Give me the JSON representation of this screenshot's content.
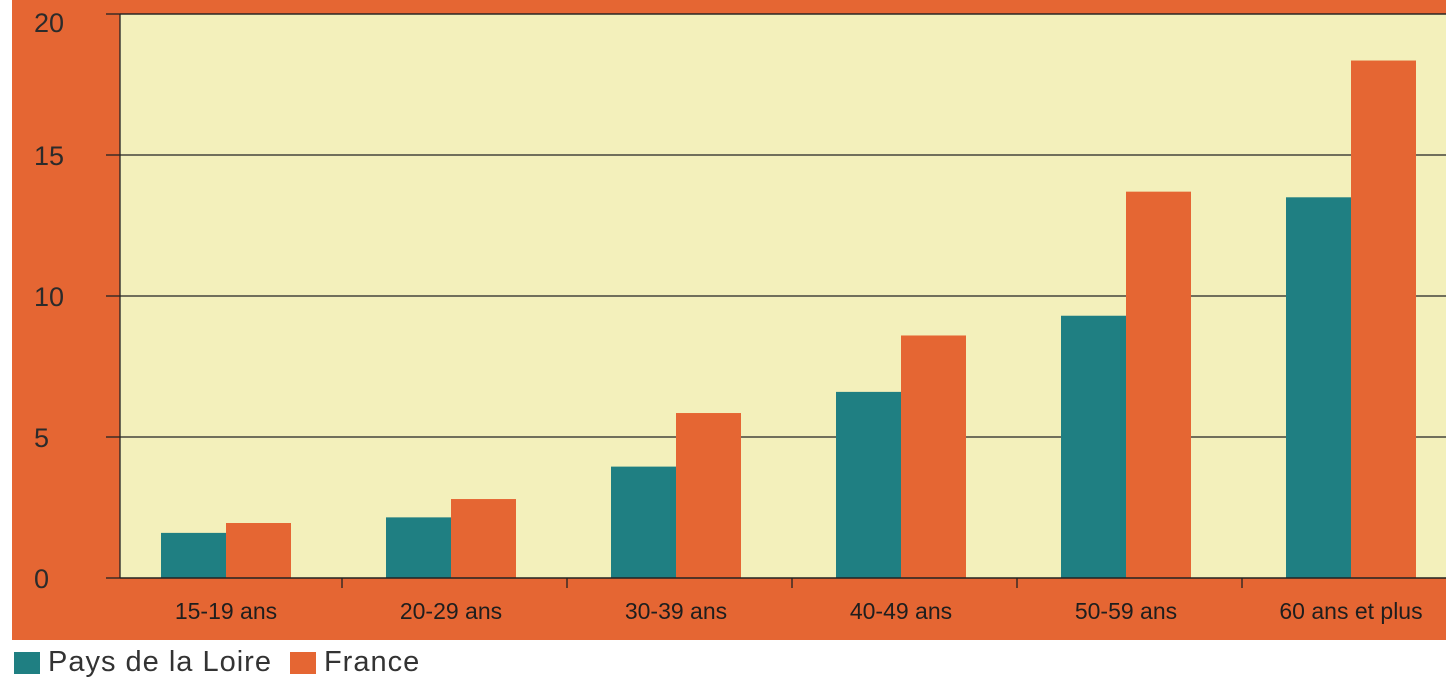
{
  "chart_data": {
    "type": "bar",
    "categories": [
      "15-19 ans",
      "20-29 ans",
      "30-39 ans",
      "40-49 ans",
      "50-59 ans",
      "60 ans et plus"
    ],
    "series": [
      {
        "name": "Pays de la Loire",
        "values": [
          1.6,
          2.15,
          3.95,
          6.6,
          9.3,
          13.5
        ],
        "color": "#1f7f82"
      },
      {
        "name": "France",
        "values": [
          1.95,
          2.8,
          5.85,
          8.6,
          13.7,
          18.35
        ],
        "color": "#e56633"
      }
    ],
    "ylim": [
      0,
      20
    ],
    "yticks": [
      "0",
      "5",
      "10",
      "15",
      "20"
    ],
    "ytick_values": [
      0,
      5,
      10,
      15,
      20
    ],
    "grid": true,
    "legend_position": "bottom-left",
    "colors": {
      "plot_background": "#f3f0bb",
      "frame": "#e56633",
      "gridline": "#222222"
    }
  }
}
